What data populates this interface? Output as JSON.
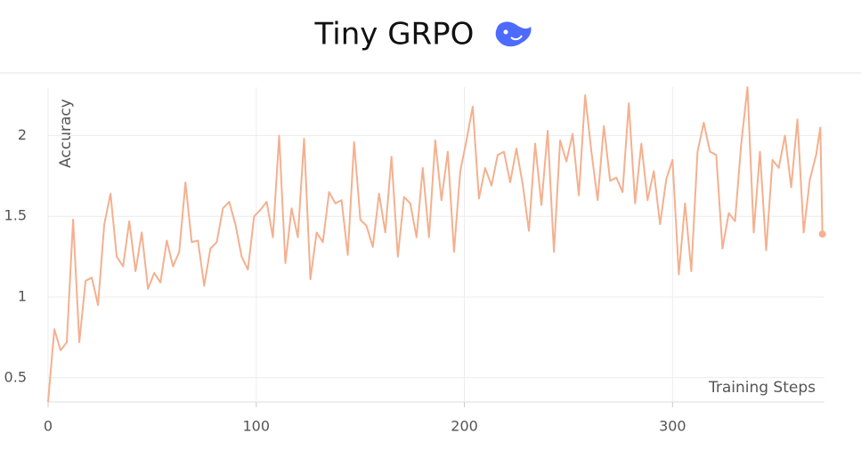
{
  "chart_data": {
    "type": "line",
    "title": "Tiny GRPO",
    "y_label": "Accuracy",
    "x_label": "Training Steps",
    "xlim": [
      0,
      373
    ],
    "ylim": [
      0.35,
      2.3
    ],
    "xticks": [
      0,
      100,
      200,
      300
    ],
    "yticks": [
      0.5,
      1,
      1.5,
      2
    ],
    "grid": true,
    "x": [
      0,
      3,
      6,
      9,
      12,
      15,
      18,
      21,
      24,
      27,
      30,
      33,
      36,
      39,
      42,
      45,
      48,
      51,
      54,
      57,
      60,
      63,
      66,
      69,
      72,
      75,
      78,
      81,
      84,
      87,
      90,
      93,
      96,
      99,
      102,
      105,
      108,
      111,
      114,
      117,
      120,
      123,
      126,
      129,
      132,
      135,
      138,
      141,
      144,
      147,
      150,
      153,
      156,
      159,
      162,
      165,
      168,
      171,
      174,
      177,
      180,
      183,
      186,
      189,
      192,
      195,
      198,
      201,
      204,
      207,
      210,
      213,
      216,
      219,
      222,
      225,
      228,
      231,
      234,
      237,
      240,
      243,
      246,
      249,
      252,
      255,
      258,
      261,
      264,
      267,
      270,
      273,
      276,
      279,
      282,
      285,
      288,
      291,
      294,
      297,
      300,
      303,
      306,
      309,
      312,
      315,
      318,
      321,
      324,
      327,
      330,
      333,
      336,
      339,
      342,
      345,
      348,
      351,
      354,
      357,
      360,
      363,
      366,
      369,
      371,
      372
    ],
    "series": [
      {
        "name": "Accuracy",
        "color": "#f4b08f",
        "values": [
          0.35,
          0.8,
          0.67,
          0.72,
          1.48,
          0.72,
          1.1,
          1.12,
          0.95,
          1.45,
          1.64,
          1.25,
          1.19,
          1.47,
          1.16,
          1.4,
          1.05,
          1.15,
          1.09,
          1.35,
          1.19,
          1.28,
          1.71,
          1.34,
          1.35,
          1.07,
          1.3,
          1.34,
          1.55,
          1.59,
          1.45,
          1.25,
          1.17,
          1.5,
          1.54,
          1.59,
          1.37,
          2.0,
          1.21,
          1.55,
          1.37,
          1.98,
          1.11,
          1.4,
          1.34,
          1.65,
          1.58,
          1.6,
          1.26,
          1.96,
          1.48,
          1.44,
          1.31,
          1.64,
          1.4,
          1.87,
          1.25,
          1.62,
          1.58,
          1.37,
          1.8,
          1.37,
          1.97,
          1.6,
          1.9,
          1.28,
          1.78,
          1.97,
          2.18,
          1.61,
          1.8,
          1.69,
          1.88,
          1.9,
          1.71,
          1.92,
          1.7,
          1.41,
          1.95,
          1.57,
          2.03,
          1.28,
          1.97,
          1.84,
          2.01,
          1.63,
          2.25,
          1.9,
          1.6,
          2.06,
          1.72,
          1.74,
          1.65,
          2.2,
          1.58,
          1.95,
          1.6,
          1.78,
          1.45,
          1.73,
          1.85,
          1.14,
          1.58,
          1.16,
          1.9,
          2.08,
          1.9,
          1.88,
          1.3,
          1.52,
          1.47,
          1.95,
          2.3,
          1.4,
          1.9,
          1.29,
          1.85,
          1.8,
          2.0,
          1.68,
          2.1,
          1.4,
          1.73,
          1.88,
          2.05,
          1.39
        ]
      }
    ]
  }
}
